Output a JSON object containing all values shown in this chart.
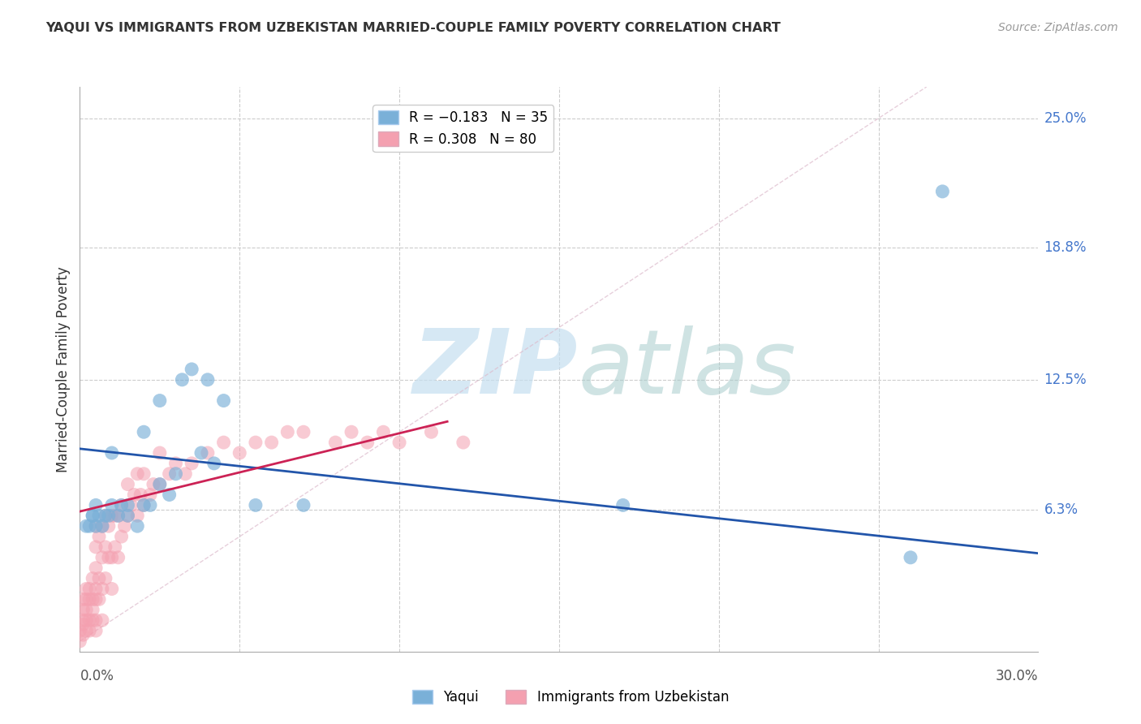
{
  "title": "YAQUI VS IMMIGRANTS FROM UZBEKISTAN MARRIED-COUPLE FAMILY POVERTY CORRELATION CHART",
  "source": "Source: ZipAtlas.com",
  "ylabel": "Married-Couple Family Poverty",
  "xlim": [
    0.0,
    0.3
  ],
  "ylim": [
    -0.005,
    0.265
  ],
  "ytick_positions": [
    0.063,
    0.125,
    0.188,
    0.25
  ],
  "ytick_labels": [
    "6.3%",
    "12.5%",
    "18.8%",
    "25.0%"
  ],
  "xtick_positions": [
    0.0,
    0.3
  ],
  "xtick_labels": [
    "0.0%",
    "30.0%"
  ],
  "blue_color": "#7ab0d8",
  "blue_edge_color": "#5588bb",
  "pink_color": "#f4a0b0",
  "pink_edge_color": "#dd7788",
  "blue_trend_color": "#2255aa",
  "pink_trend_color": "#cc2255",
  "diag_color": "#ddbbcc",
  "watermark_zip_color": "#c8dff0",
  "watermark_atlas_color": "#b0cccc",
  "grid_color": "#cccccc",
  "tick_label_color": "#4477cc",
  "ylabel_color": "#333333",
  "background_color": "#ffffff",
  "blue_trend": [
    0.0,
    0.3,
    0.092,
    0.042
  ],
  "pink_trend": [
    0.0,
    0.115,
    0.062,
    0.105
  ],
  "yaqui_x": [
    0.002,
    0.003,
    0.004,
    0.004,
    0.005,
    0.005,
    0.006,
    0.007,
    0.008,
    0.009,
    0.01,
    0.01,
    0.012,
    0.013,
    0.015,
    0.015,
    0.018,
    0.02,
    0.02,
    0.022,
    0.025,
    0.025,
    0.028,
    0.03,
    0.032,
    0.035,
    0.038,
    0.04,
    0.042,
    0.045,
    0.055,
    0.07,
    0.17,
    0.26,
    0.27
  ],
  "yaqui_y": [
    0.055,
    0.055,
    0.06,
    0.06,
    0.055,
    0.065,
    0.06,
    0.055,
    0.06,
    0.06,
    0.065,
    0.09,
    0.06,
    0.065,
    0.06,
    0.065,
    0.055,
    0.065,
    0.1,
    0.065,
    0.075,
    0.115,
    0.07,
    0.08,
    0.125,
    0.13,
    0.09,
    0.125,
    0.085,
    0.115,
    0.065,
    0.065,
    0.065,
    0.04,
    0.215
  ],
  "uzbek_x": [
    0.0,
    0.0,
    0.001,
    0.001,
    0.001,
    0.001,
    0.001,
    0.002,
    0.002,
    0.002,
    0.002,
    0.002,
    0.003,
    0.003,
    0.003,
    0.003,
    0.004,
    0.004,
    0.004,
    0.004,
    0.005,
    0.005,
    0.005,
    0.005,
    0.005,
    0.005,
    0.005,
    0.006,
    0.006,
    0.006,
    0.007,
    0.007,
    0.007,
    0.007,
    0.008,
    0.008,
    0.008,
    0.009,
    0.009,
    0.01,
    0.01,
    0.01,
    0.011,
    0.011,
    0.012,
    0.012,
    0.013,
    0.013,
    0.014,
    0.015,
    0.015,
    0.016,
    0.017,
    0.018,
    0.018,
    0.019,
    0.02,
    0.02,
    0.022,
    0.023,
    0.025,
    0.025,
    0.028,
    0.03,
    0.033,
    0.035,
    0.04,
    0.045,
    0.05,
    0.055,
    0.06,
    0.065,
    0.07,
    0.08,
    0.085,
    0.09,
    0.095,
    0.1,
    0.11,
    0.12
  ],
  "uzbek_y": [
    0.0,
    0.005,
    0.003,
    0.008,
    0.01,
    0.015,
    0.02,
    0.005,
    0.01,
    0.015,
    0.02,
    0.025,
    0.005,
    0.01,
    0.02,
    0.025,
    0.01,
    0.015,
    0.02,
    0.03,
    0.005,
    0.01,
    0.02,
    0.025,
    0.035,
    0.045,
    0.055,
    0.02,
    0.03,
    0.05,
    0.01,
    0.025,
    0.04,
    0.055,
    0.03,
    0.045,
    0.06,
    0.04,
    0.055,
    0.025,
    0.04,
    0.06,
    0.045,
    0.06,
    0.04,
    0.06,
    0.05,
    0.065,
    0.055,
    0.06,
    0.075,
    0.065,
    0.07,
    0.06,
    0.08,
    0.07,
    0.065,
    0.08,
    0.07,
    0.075,
    0.075,
    0.09,
    0.08,
    0.085,
    0.08,
    0.085,
    0.09,
    0.095,
    0.09,
    0.095,
    0.095,
    0.1,
    0.1,
    0.095,
    0.1,
    0.095,
    0.1,
    0.095,
    0.1,
    0.095
  ]
}
